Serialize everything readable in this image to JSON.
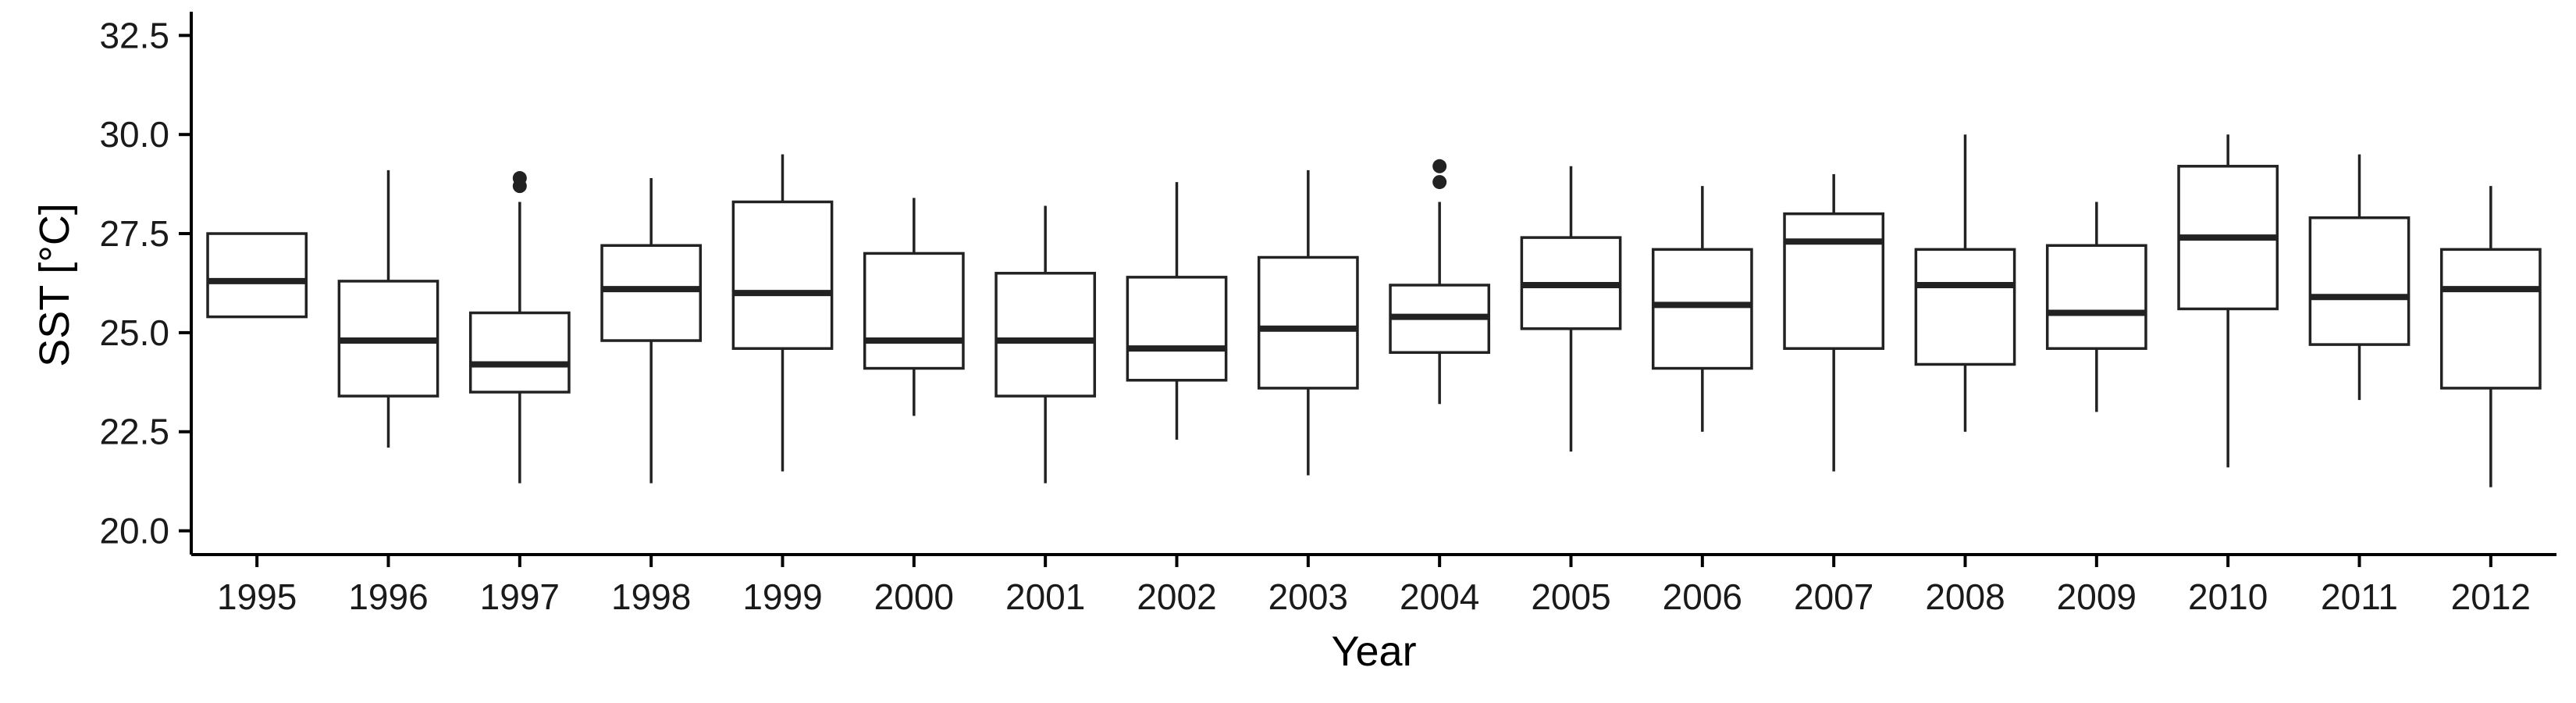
{
  "chart_data": {
    "type": "boxplot",
    "xlabel": "Year",
    "ylabel": "SST [°C]",
    "ylim": [
      19.4,
      33.0
    ],
    "yticks": [
      "20.0",
      "22.5",
      "25.0",
      "27.5",
      "30.0",
      "32.5"
    ],
    "ytick_values": [
      20.0,
      22.5,
      25.0,
      27.5,
      30.0,
      32.5
    ],
    "grid": false,
    "categories": [
      "1995",
      "1996",
      "1997",
      "1998",
      "1999",
      "2000",
      "2001",
      "2002",
      "2003",
      "2004",
      "2005",
      "2006",
      "2007",
      "2008",
      "2009",
      "2010",
      "2011",
      "2012"
    ],
    "boxes": [
      {
        "year": "1995",
        "min": 25.4,
        "q1": 25.4,
        "median": 26.3,
        "q3": 27.5,
        "max": 27.5,
        "outliers": []
      },
      {
        "year": "1996",
        "min": 22.1,
        "q1": 23.4,
        "median": 24.8,
        "q3": 26.3,
        "max": 29.1,
        "outliers": []
      },
      {
        "year": "1997",
        "min": 21.2,
        "q1": 23.5,
        "median": 24.2,
        "q3": 25.5,
        "max": 28.3,
        "outliers": [
          28.7,
          28.9
        ]
      },
      {
        "year": "1998",
        "min": 21.2,
        "q1": 24.8,
        "median": 26.1,
        "q3": 27.2,
        "max": 28.9,
        "outliers": []
      },
      {
        "year": "1999",
        "min": 21.5,
        "q1": 24.6,
        "median": 26.0,
        "q3": 28.3,
        "max": 29.5,
        "outliers": []
      },
      {
        "year": "2000",
        "min": 22.9,
        "q1": 24.1,
        "median": 24.8,
        "q3": 27.0,
        "max": 28.4,
        "outliers": []
      },
      {
        "year": "2001",
        "min": 21.2,
        "q1": 23.4,
        "median": 24.8,
        "q3": 26.5,
        "max": 28.2,
        "outliers": []
      },
      {
        "year": "2002",
        "min": 22.3,
        "q1": 23.8,
        "median": 24.6,
        "q3": 26.4,
        "max": 28.8,
        "outliers": []
      },
      {
        "year": "2003",
        "min": 21.4,
        "q1": 23.6,
        "median": 25.1,
        "q3": 26.9,
        "max": 29.1,
        "outliers": []
      },
      {
        "year": "2004",
        "min": 23.2,
        "q1": 24.5,
        "median": 25.4,
        "q3": 26.2,
        "max": 28.3,
        "outliers": [
          28.8,
          29.2
        ]
      },
      {
        "year": "2005",
        "min": 22.0,
        "q1": 25.1,
        "median": 26.2,
        "q3": 27.4,
        "max": 29.2,
        "outliers": []
      },
      {
        "year": "2006",
        "min": 22.5,
        "q1": 24.1,
        "median": 25.7,
        "q3": 27.1,
        "max": 28.7,
        "outliers": []
      },
      {
        "year": "2007",
        "min": 21.5,
        "q1": 24.6,
        "median": 27.3,
        "q3": 28.0,
        "max": 29.0,
        "outliers": []
      },
      {
        "year": "2008",
        "min": 22.5,
        "q1": 24.2,
        "median": 26.2,
        "q3": 27.1,
        "max": 30.0,
        "outliers": []
      },
      {
        "year": "2009",
        "min": 23.0,
        "q1": 24.6,
        "median": 25.5,
        "q3": 27.2,
        "max": 28.3,
        "outliers": []
      },
      {
        "year": "2010",
        "min": 21.6,
        "q1": 25.6,
        "median": 27.4,
        "q3": 29.2,
        "max": 30.0,
        "outliers": []
      },
      {
        "year": "2011",
        "min": 23.3,
        "q1": 24.7,
        "median": 25.9,
        "q3": 27.9,
        "max": 29.5,
        "outliers": []
      },
      {
        "year": "2012",
        "min": 21.1,
        "q1": 23.6,
        "median": 26.1,
        "q3": 27.1,
        "max": 28.7,
        "outliers": []
      }
    ],
    "colors": {
      "stroke": "#222222",
      "fill": "#ffffff",
      "axis": "#000000"
    }
  }
}
